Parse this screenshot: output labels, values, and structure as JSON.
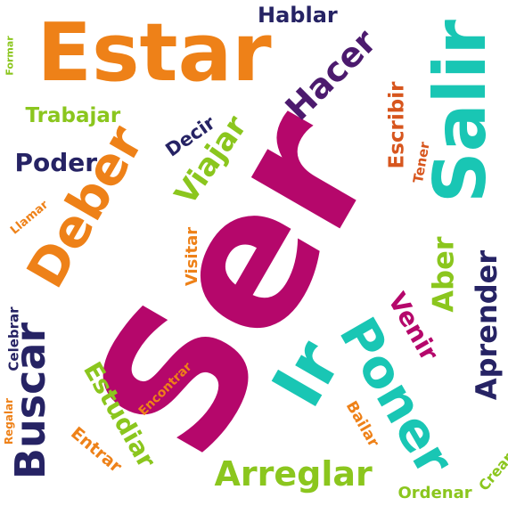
{
  "colors": {
    "magenta": "#b5076b",
    "orange": "#ee8118",
    "teal": "#19c6b4",
    "navy": "#262364",
    "purple": "#4c1a6e",
    "lime": "#8bc61e",
    "rust": "#d7561e"
  },
  "words": [
    {
      "text": "Ser",
      "color": "magenta"
    },
    {
      "text": "Estar",
      "color": "orange"
    },
    {
      "text": "Salir",
      "color": "teal"
    },
    {
      "text": "Deber",
      "color": "orange"
    },
    {
      "text": "Ir",
      "color": "teal"
    },
    {
      "text": "Poner",
      "color": "teal"
    },
    {
      "text": "Buscar",
      "color": "navy"
    },
    {
      "text": "Hacer",
      "color": "purple"
    },
    {
      "text": "Aprender",
      "color": "navy"
    },
    {
      "text": "Arreglar",
      "color": "lime"
    },
    {
      "text": "Viajar",
      "color": "lime"
    },
    {
      "text": "Aber",
      "color": "lime"
    },
    {
      "text": "Estudiar",
      "color": "lime"
    },
    {
      "text": "Hablar",
      "color": "navy"
    },
    {
      "text": "Poder",
      "color": "navy"
    },
    {
      "text": "Venir",
      "color": "magenta"
    },
    {
      "text": "Escribir",
      "color": "rust"
    },
    {
      "text": "Trabajar",
      "color": "lime"
    },
    {
      "text": "Decir",
      "color": "navy"
    },
    {
      "text": "Entrar",
      "color": "orange"
    },
    {
      "text": "Visitar",
      "color": "orange"
    },
    {
      "text": "Ordenar",
      "color": "lime"
    },
    {
      "text": "Crear",
      "color": "lime"
    },
    {
      "text": "Bailar",
      "color": "orange"
    },
    {
      "text": "Tener",
      "color": "rust"
    },
    {
      "text": "Llamar",
      "color": "orange"
    },
    {
      "text": "Celebrar",
      "color": "navy"
    },
    {
      "text": "Encontrar",
      "color": "orange"
    },
    {
      "text": "Regalar",
      "color": "orange"
    },
    {
      "text": "Formar",
      "color": "lime"
    }
  ]
}
